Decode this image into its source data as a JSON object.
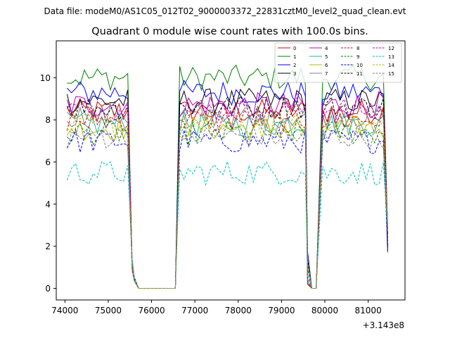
{
  "chart_data": {
    "type": "line",
    "suptitle": "Data file: modeM0/AS1C05_012T02_9000003372_22831cztM0_level2_quad_clean.evt",
    "title": "Quadrant 0 module wise count rates with 100.0s bins.",
    "xlabel": "",
    "ylabel": "",
    "x_offset_label": "+3.143e8",
    "xlim": [
      73800,
      81850
    ],
    "ylim": [
      -0.55,
      11.75
    ],
    "x_ticks": [
      74000,
      75000,
      76000,
      77000,
      78000,
      79000,
      80000,
      81000
    ],
    "x_tick_labels": [
      "74000",
      "75000",
      "76000",
      "77000",
      "78000",
      "79000",
      "80000",
      "81000"
    ],
    "y_ticks": [
      0,
      2,
      4,
      6,
      8,
      10
    ],
    "y_tick_labels": [
      "0",
      "2",
      "4",
      "6",
      "8",
      "10"
    ],
    "grid": false,
    "legend_position": "top-right",
    "legend_columns": 4,
    "time_segments": [
      {
        "start": 74050,
        "end": 75500,
        "step": 100
      },
      {
        "start": 76650,
        "end": 79550,
        "step": 100
      },
      {
        "start": 79950,
        "end": 81350,
        "step": 100
      }
    ],
    "drop_values": {
      "start_edge": [
        0.85,
        0.35
      ],
      "end_edge": [
        0.0,
        1.7
      ],
      "middle_gap": [
        0.0,
        0.0
      ]
    },
    "series": [
      {
        "name": "0",
        "color": "#d40000",
        "dash": "solid",
        "level": 8.4
      },
      {
        "name": "1",
        "color": "#008000",
        "dash": "solid",
        "level": 10.0
      },
      {
        "name": "2",
        "color": "#0000ff",
        "dash": "solid",
        "level": 9.3
      },
      {
        "name": "3",
        "color": "#000000",
        "dash": "solid",
        "level": 8.9
      },
      {
        "name": "4",
        "color": "#c000c0",
        "dash": "solid",
        "level": 8.7
      },
      {
        "name": "5",
        "color": "#20b2aa",
        "dash": "solid",
        "level": 7.8
      },
      {
        "name": "6",
        "color": "#b8b800",
        "dash": "solid",
        "level": 7.6
      },
      {
        "name": "7",
        "color": "#808080",
        "dash": "solid",
        "level": 8.2
      },
      {
        "name": "8",
        "color": "#d40000",
        "dash": "dashed",
        "level": 8.0
      },
      {
        "name": "9",
        "color": "#008000",
        "dash": "dashed",
        "level": 7.4
      },
      {
        "name": "10",
        "color": "#0000ff",
        "dash": "dashed",
        "level": 7.0
      },
      {
        "name": "11",
        "color": "#000000",
        "dash": "dashed",
        "level": 8.6
      },
      {
        "name": "12",
        "color": "#c000c0",
        "dash": "dashed",
        "level": 8.5
      },
      {
        "name": "13",
        "color": "#00bfbf",
        "dash": "dashed",
        "level": 5.5
      },
      {
        "name": "14",
        "color": "#b8b800",
        "dash": "dashed",
        "level": 7.7
      },
      {
        "name": "15",
        "color": "#808080",
        "dash": "dashed",
        "level": 7.2
      }
    ]
  }
}
